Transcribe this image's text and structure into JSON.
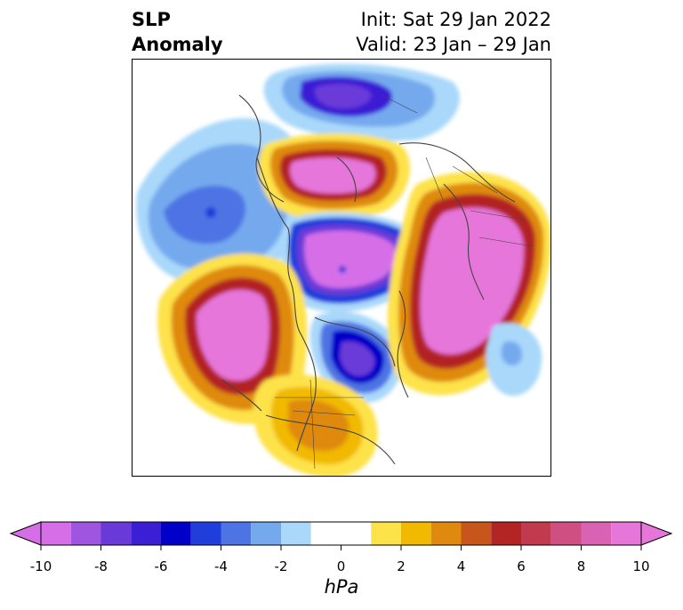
{
  "title": {
    "variable_line1": "SLP",
    "variable_line2": "Anomaly",
    "init": "Init: Sat 29 Jan 2022",
    "valid": "Valid: 23 Jan – 29 Jan"
  },
  "map": {
    "projection": "north-polar-stereographic",
    "field": "sea-level pressure anomaly"
  },
  "colorbar": {
    "units": "hPa",
    "tick_labels": [
      "-10",
      "-8",
      "-6",
      "-4",
      "-2",
      "0",
      "2",
      "4",
      "6",
      "8",
      "10"
    ],
    "levels": [
      -10,
      -9,
      -8,
      -7,
      -6,
      -5,
      -4,
      -3,
      -2,
      -1,
      1,
      2,
      3,
      4,
      5,
      6,
      7,
      8,
      9,
      10
    ],
    "colors": [
      "#d66ee8",
      "#9f55e0",
      "#6a3ad8",
      "#3a1fd4",
      "#0000c8",
      "#1f3edc",
      "#4d73e4",
      "#75a9ee",
      "#a9d8fa",
      "#ffffff",
      "#fde24a",
      "#f1b900",
      "#df8a0e",
      "#c8561a",
      "#b32424",
      "#c23a4e",
      "#cf4f82",
      "#da62b4",
      "#e676da"
    ],
    "extend_low_color": "#d66ee8",
    "extend_high_color": "#e676da"
  }
}
